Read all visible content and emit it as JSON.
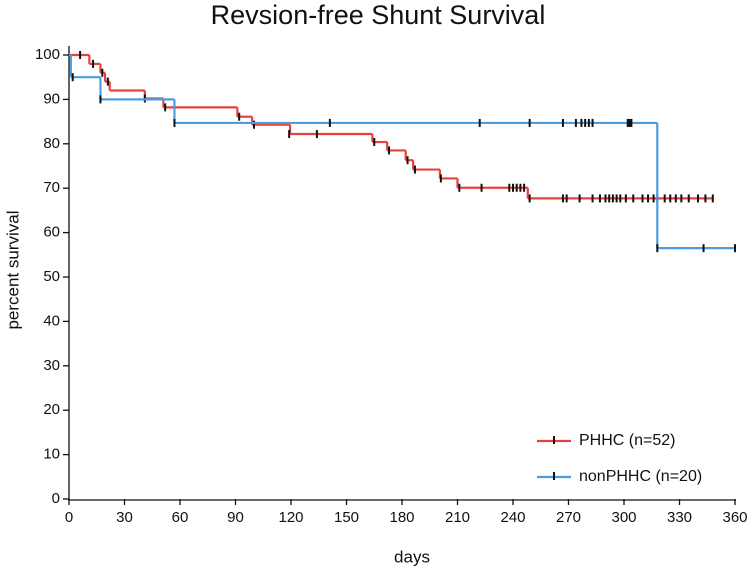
{
  "chart_data": {
    "type": "step",
    "title": "Revsion-free Shunt Survival",
    "x_label": "days",
    "y_label": "percent survival",
    "xlim": [
      0,
      360
    ],
    "ylim": [
      0,
      100
    ],
    "xticks": [
      0,
      30,
      60,
      90,
      120,
      150,
      180,
      210,
      240,
      270,
      300,
      330,
      360
    ],
    "yticks": [
      0,
      10,
      20,
      30,
      40,
      50,
      60,
      70,
      80,
      90,
      100
    ],
    "legend": "lower right",
    "series": [
      {
        "name": "PHHC (n=52)",
        "color": "#e8403e",
        "x": [
          0,
          11,
          17,
          19.5,
          22,
          41,
          51,
          91,
          99,
          119.5,
          164,
          172,
          182,
          186,
          200.5,
          210,
          248,
          348
        ],
        "values": [
          100,
          98,
          96,
          94,
          92,
          90.2,
          88.2,
          86.1,
          84.3,
          82.2,
          80.4,
          78.5,
          76.3,
          74.2,
          72.2,
          70.1,
          67.7,
          67.7
        ],
        "censored": {
          "x": [
            6,
            13,
            18,
            21,
            41,
            52,
            92,
            100,
            119,
            134,
            165,
            173,
            183,
            187,
            201,
            211,
            223,
            238,
            240,
            242,
            244,
            246,
            249,
            267,
            269,
            276,
            283,
            287,
            290,
            292,
            294,
            296,
            298,
            301,
            305,
            310,
            313,
            316,
            318,
            322,
            325,
            328,
            331,
            335,
            340,
            344,
            348
          ],
          "values": [
            100,
            98,
            96,
            94,
            90.2,
            88.2,
            86.1,
            84.3,
            82.2,
            82.2,
            80.4,
            78.5,
            76.3,
            74.2,
            72.2,
            70.1,
            70.1,
            70.1,
            70.1,
            70.1,
            70.1,
            70.1,
            67.7,
            67.7,
            67.7,
            67.7,
            67.7,
            67.7,
            67.7,
            67.7,
            67.7,
            67.7,
            67.7,
            67.7,
            67.7,
            67.7,
            67.7,
            67.7,
            67.7,
            67.7,
            67.7,
            67.7,
            67.7,
            67.7,
            67.7,
            67.7,
            67.7
          ]
        }
      },
      {
        "name": "nonPHHC (n=20)",
        "color": "#4a9de0",
        "x": [
          0,
          1,
          17,
          57,
          318,
          360
        ],
        "values": [
          100,
          95,
          90,
          84.7,
          56.5,
          56.5
        ],
        "censored": {
          "x": [
            2,
            17,
            57,
            141,
            222,
            249,
            267,
            274,
            277,
            279,
            281,
            283,
            302,
            303,
            304,
            318,
            343,
            360
          ],
          "values": [
            95,
            90,
            84.7,
            84.7,
            84.7,
            84.7,
            84.7,
            84.7,
            84.7,
            84.7,
            84.7,
            84.7,
            84.7,
            84.7,
            84.7,
            56.5,
            56.5,
            56.5
          ]
        }
      }
    ]
  }
}
